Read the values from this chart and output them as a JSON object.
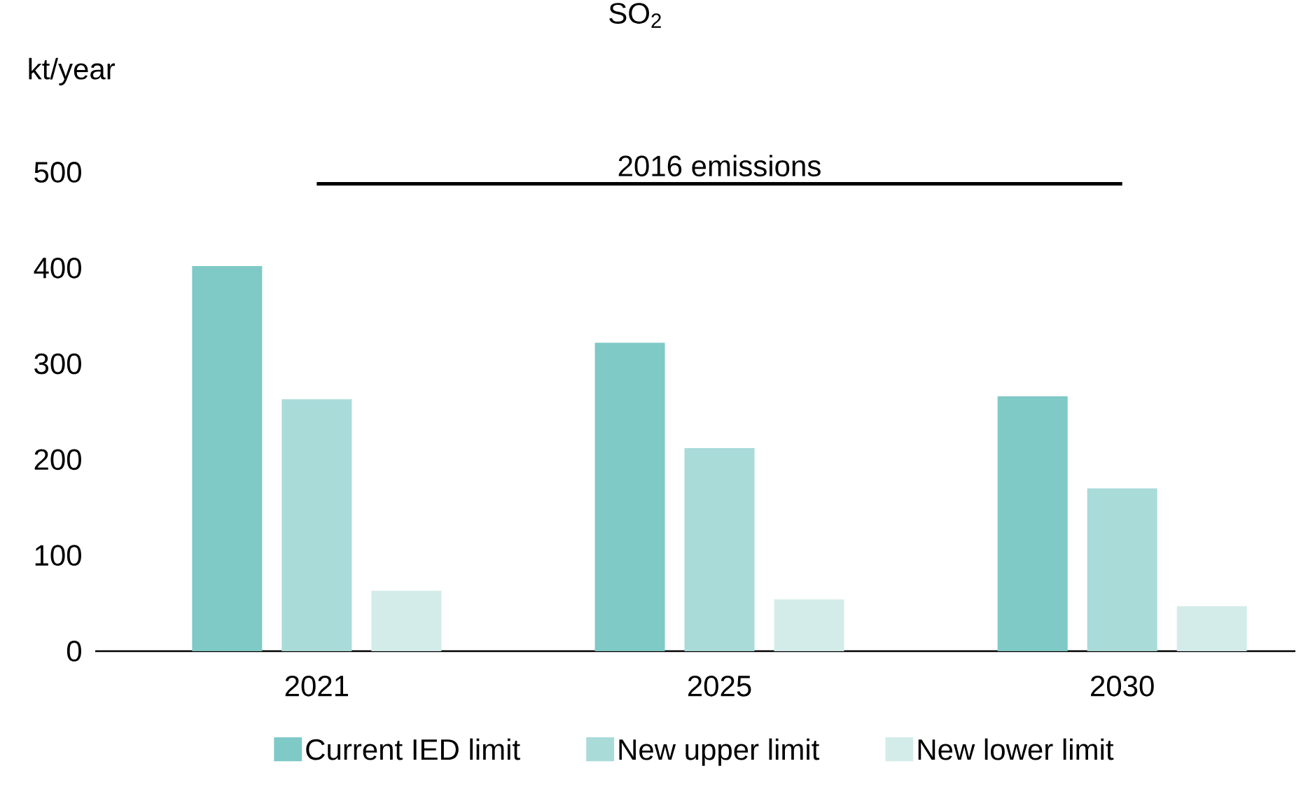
{
  "chart_data": {
    "type": "bar",
    "title": "SO$_{2}$",
    "ylabel": "kt/year",
    "categories": [
      "2021",
      "2025",
      "2030"
    ],
    "series": [
      {
        "name": "Current IED limit",
        "color": "#7fc9c6",
        "values": [
          402,
          322,
          266
        ]
      },
      {
        "name": "New upper limit",
        "color": "#a9dbd9",
        "values": [
          263,
          212,
          170
        ]
      },
      {
        "name": "New lower limit",
        "color": "#d3ecea",
        "values": [
          63,
          54,
          47
        ]
      }
    ],
    "ylim": [
      0,
      500
    ],
    "yticks": [
      0,
      100,
      200,
      300,
      400,
      500
    ],
    "ref_lines": [
      {
        "axis": "y",
        "value": 488,
        "label": "2016 emissions"
      }
    ],
    "legend": "bottom"
  }
}
